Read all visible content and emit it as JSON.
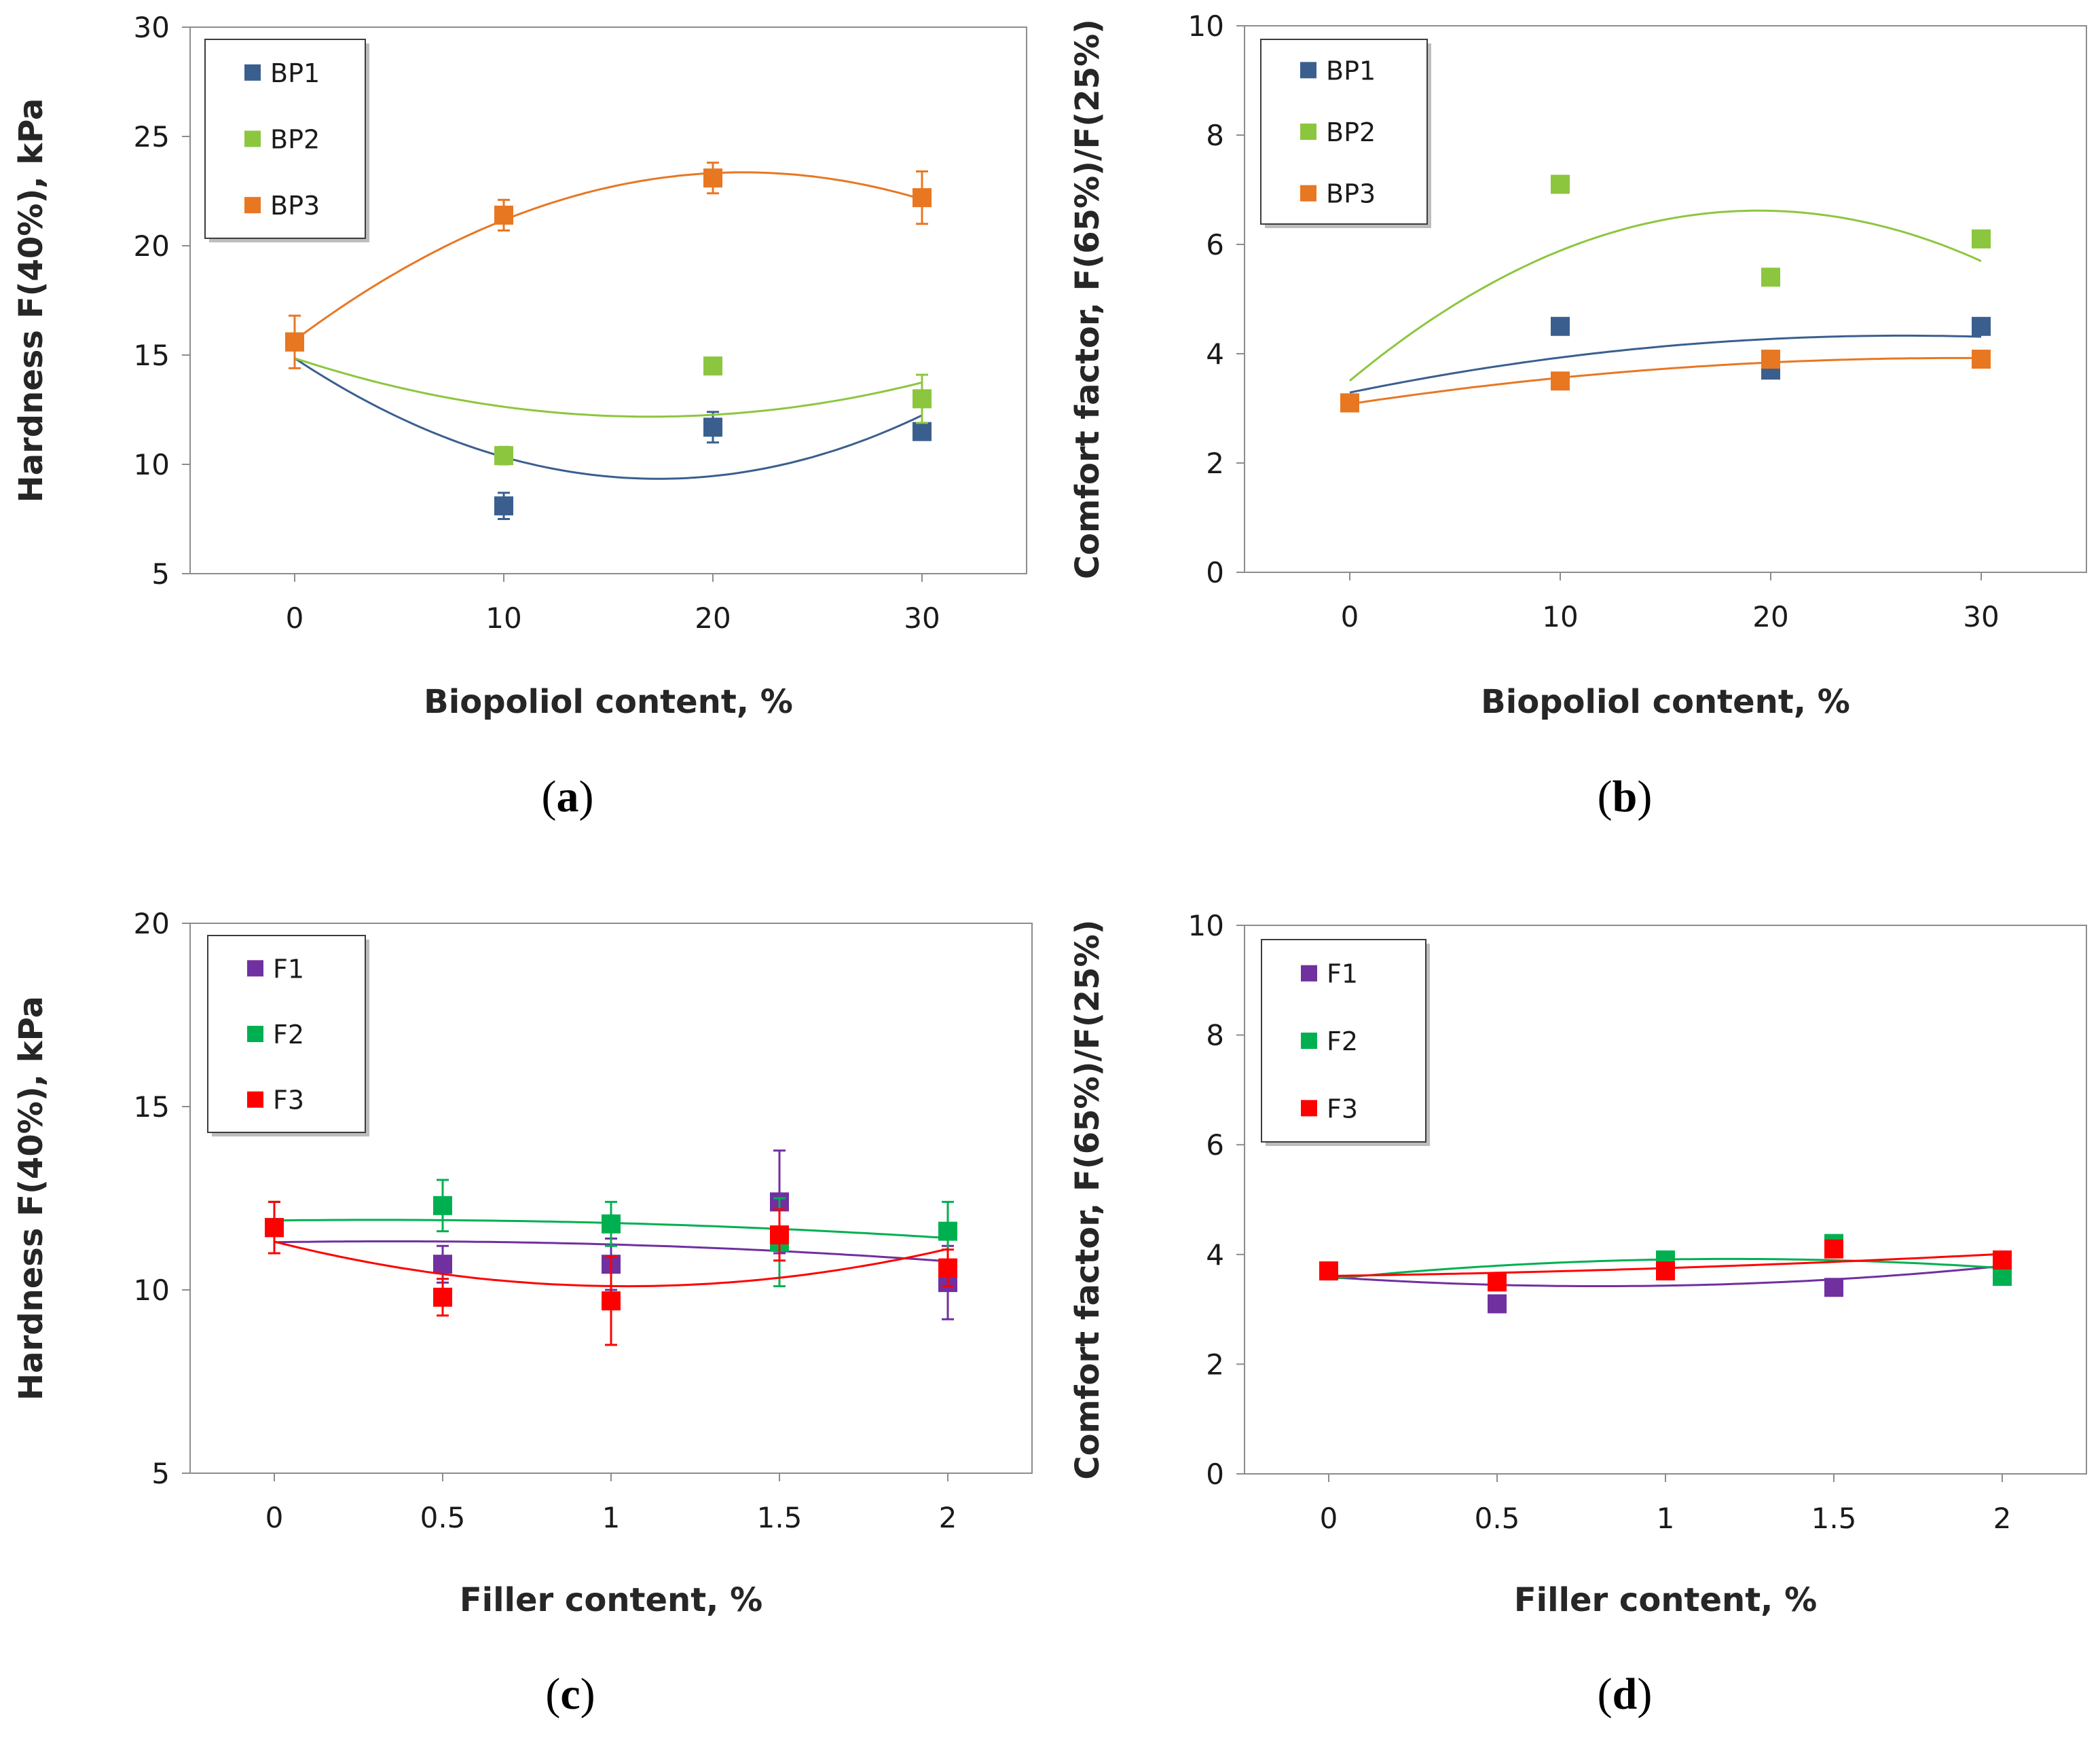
{
  "chart_data": [
    {
      "id": "a",
      "type": "scatter",
      "panel_label": "a",
      "xlabel": "Biopoliol content, %",
      "ylabel": "Hardness F(40%), kPa",
      "xlim": [
        -5,
        35
      ],
      "ylim": [
        5,
        30
      ],
      "xticks": [
        0,
        10,
        20,
        30
      ],
      "xtick_labels": [
        "0",
        "10",
        "20",
        "30"
      ],
      "yticks": [
        5,
        10,
        15,
        20,
        25,
        30
      ],
      "ytick_labels": [
        "5",
        "10",
        "15",
        "20",
        "25",
        "30"
      ],
      "legend_position": "top-left",
      "grid": false,
      "trendline": "polynomial order 2",
      "series": [
        {
          "name": "BP1",
          "color": "#3A5F8F",
          "x": [
            0,
            10,
            20,
            30
          ],
          "y": [
            15.6,
            8.1,
            11.7,
            11.5
          ],
          "err": [
            0,
            0.6,
            0.7,
            0.3
          ]
        },
        {
          "name": "BP2",
          "color": "#8CC63F",
          "x": [
            0,
            10,
            20,
            30
          ],
          "y": [
            15.6,
            10.4,
            14.5,
            13.0
          ],
          "err": [
            0,
            0.4,
            0,
            1.1
          ]
        },
        {
          "name": "BP3",
          "color": "#E87722",
          "x": [
            0,
            10,
            20,
            30
          ],
          "y": [
            15.6,
            21.4,
            23.1,
            22.2
          ],
          "err": [
            1.2,
            0.7,
            0.7,
            1.2
          ]
        }
      ]
    },
    {
      "id": "b",
      "type": "scatter",
      "panel_label": "b",
      "xlabel": "Biopoliol content, %",
      "ylabel": "Comfort factor, F(65%)/F(25%)",
      "xlim": [
        -5,
        35
      ],
      "ylim": [
        0,
        10
      ],
      "xticks": [
        0,
        10,
        20,
        30
      ],
      "xtick_labels": [
        "0",
        "10",
        "20",
        "30"
      ],
      "yticks": [
        0,
        2,
        4,
        6,
        8,
        10
      ],
      "ytick_labels": [
        "0",
        "2",
        "4",
        "6",
        "8",
        "10"
      ],
      "legend_position": "top-left",
      "grid": false,
      "trendline": "polynomial order 2",
      "series": [
        {
          "name": "BP1",
          "color": "#3A5F8F",
          "x": [
            0,
            10,
            20,
            30
          ],
          "y": [
            3.1,
            4.5,
            3.7,
            4.5
          ]
        },
        {
          "name": "BP2",
          "color": "#8CC63F",
          "x": [
            0,
            10,
            20,
            30
          ],
          "y": [
            3.1,
            7.1,
            5.4,
            6.1
          ]
        },
        {
          "name": "BP3",
          "color": "#E87722",
          "x": [
            0,
            10,
            20,
            30
          ],
          "y": [
            3.1,
            3.5,
            3.9,
            3.9
          ]
        }
      ]
    },
    {
      "id": "c",
      "type": "scatter",
      "panel_label": "c",
      "xlabel": "Filler content, %",
      "ylabel": "Hardness F(40%), kPa",
      "xlim": [
        -0.25,
        2.25
      ],
      "ylim": [
        5,
        20
      ],
      "xticks": [
        0,
        0.5,
        1,
        1.5,
        2
      ],
      "xtick_labels": [
        "0",
        "0.5",
        "1",
        "1.5",
        "2"
      ],
      "yticks": [
        5,
        10,
        15,
        20
      ],
      "ytick_labels": [
        "5",
        "10",
        "15",
        "20"
      ],
      "legend_position": "top-left",
      "grid": false,
      "trendline": "polynomial order 2",
      "series": [
        {
          "name": "F1",
          "color": "#7030A0",
          "x": [
            0,
            0.5,
            1,
            1.5,
            2
          ],
          "y": [
            11.7,
            10.7,
            10.7,
            12.4,
            10.2
          ],
          "err": [
            0.7,
            0.5,
            0.7,
            1.4,
            1.0
          ]
        },
        {
          "name": "F2",
          "color": "#00B050",
          "x": [
            0,
            0.5,
            1,
            1.5,
            2
          ],
          "y": [
            11.7,
            12.3,
            11.8,
            11.3,
            11.6
          ],
          "err": [
            0.7,
            0.7,
            0.6,
            1.2,
            0.8
          ]
        },
        {
          "name": "F3",
          "color": "#FF0000",
          "x": [
            0,
            0.5,
            1,
            1.5,
            2
          ],
          "y": [
            11.7,
            9.8,
            9.7,
            11.5,
            10.6
          ],
          "err": [
            0.7,
            0.5,
            1.2,
            0.7,
            0.5
          ]
        }
      ]
    },
    {
      "id": "d",
      "type": "scatter",
      "panel_label": "d",
      "xlabel": "Filler content, %",
      "ylabel": "Comfort factor, F(65%)/F(25%)",
      "xlim": [
        -0.25,
        2.25
      ],
      "ylim": [
        0,
        10
      ],
      "xticks": [
        0,
        0.5,
        1,
        1.5,
        2
      ],
      "xtick_labels": [
        "0",
        "0.5",
        "1",
        "1.5",
        "2"
      ],
      "yticks": [
        0,
        2,
        4,
        6,
        8,
        10
      ],
      "ytick_labels": [
        "0",
        "2",
        "4",
        "6",
        "8",
        "10"
      ],
      "legend_position": "top-left",
      "grid": false,
      "trendline": "polynomial order 2",
      "series": [
        {
          "name": "F1",
          "color": "#7030A0",
          "x": [
            0,
            0.5,
            1,
            1.5,
            2
          ],
          "y": [
            3.7,
            3.1,
            3.8,
            3.4,
            3.8
          ]
        },
        {
          "name": "F2",
          "color": "#00B050",
          "x": [
            0,
            0.5,
            1,
            1.5,
            2
          ],
          "y": [
            3.7,
            3.5,
            3.9,
            4.2,
            3.6
          ]
        },
        {
          "name": "F3",
          "color": "#FF0000",
          "x": [
            0,
            0.5,
            1,
            1.5,
            2
          ],
          "y": [
            3.7,
            3.5,
            3.7,
            4.1,
            3.9
          ]
        }
      ]
    }
  ]
}
